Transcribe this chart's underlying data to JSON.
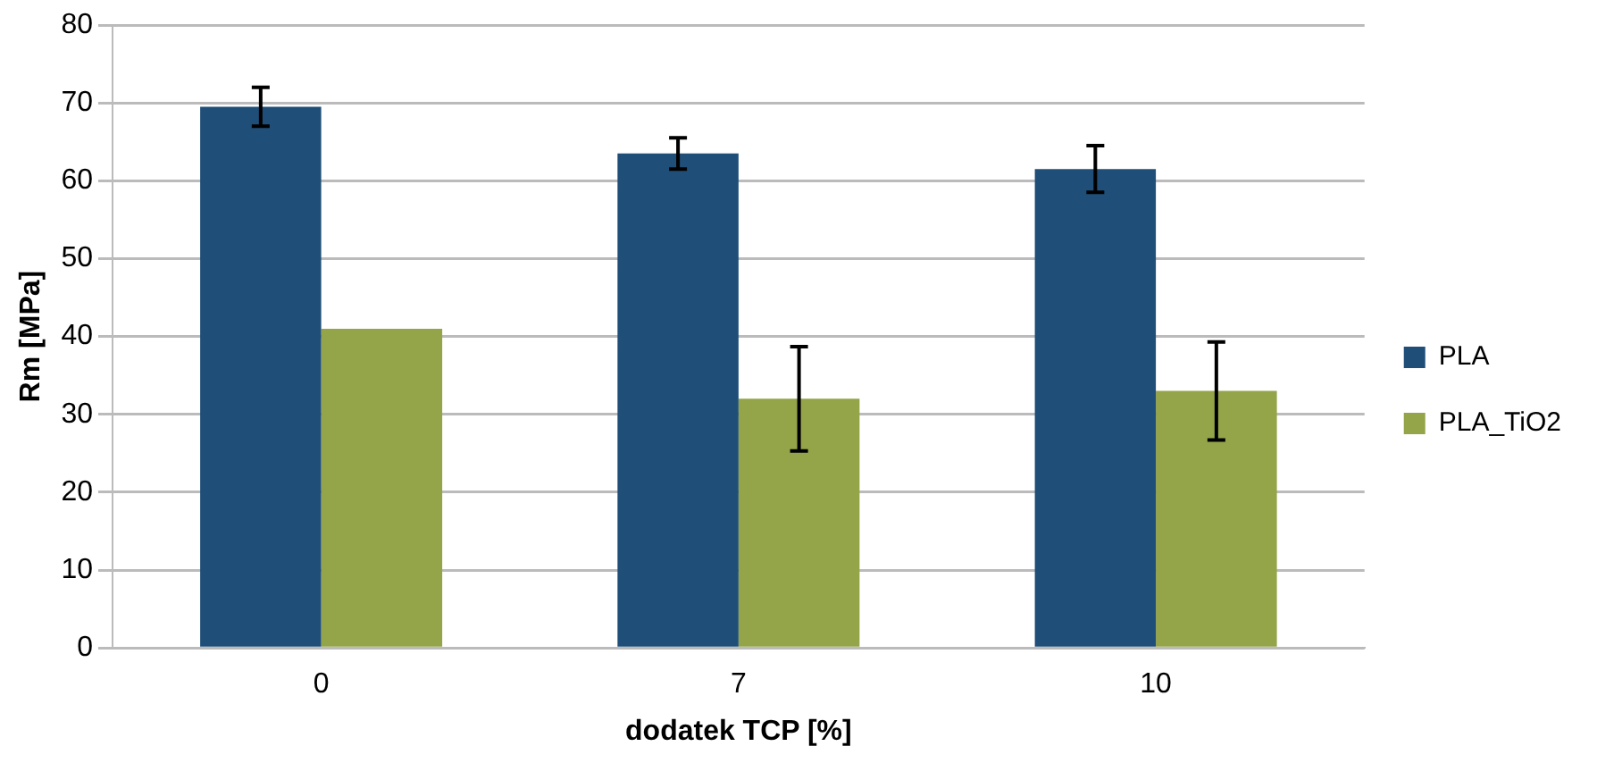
{
  "chart_data": {
    "type": "bar",
    "xlabel": "dodatek TCP [%]",
    "ylabel": "Rm [MPa]",
    "categories": [
      "0",
      "7",
      "10"
    ],
    "series": [
      {
        "name": "PLA",
        "color": "#1f4e79",
        "values": [
          69.5,
          63.5,
          61.5
        ],
        "errors": [
          2.5,
          2,
          3
        ]
      },
      {
        "name": "PLA_TiO2",
        "color": "#93a449",
        "values": [
          41,
          32,
          33
        ],
        "errors": [
          null,
          6.7,
          6.3
        ]
      }
    ],
    "ylim": [
      0,
      80
    ],
    "yticks": [
      0,
      10,
      20,
      30,
      40,
      50,
      60,
      70,
      80
    ],
    "grid": "y",
    "legend": "right"
  }
}
